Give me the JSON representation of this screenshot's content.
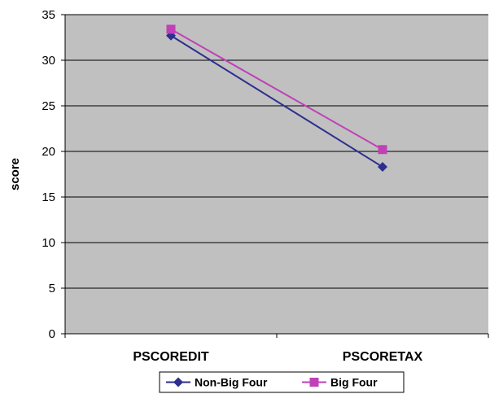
{
  "chart_data": {
    "type": "line",
    "categories": [
      "PSCOREDIT",
      "PSCORETAX"
    ],
    "series": [
      {
        "name": "Non-Big Four",
        "values": [
          32.7,
          18.3
        ],
        "color": "#2e2e8f",
        "marker": "diamond"
      },
      {
        "name": "Big Four",
        "values": [
          33.4,
          20.2
        ],
        "color": "#c040b8",
        "marker": "square"
      }
    ],
    "ylabel": "score",
    "ylim": [
      0,
      35
    ],
    "yticks": [
      0,
      5,
      10,
      15,
      20,
      25,
      30,
      35
    ],
    "grid": true,
    "plot_background": "#c0c0c0",
    "legend_position": "bottom"
  }
}
